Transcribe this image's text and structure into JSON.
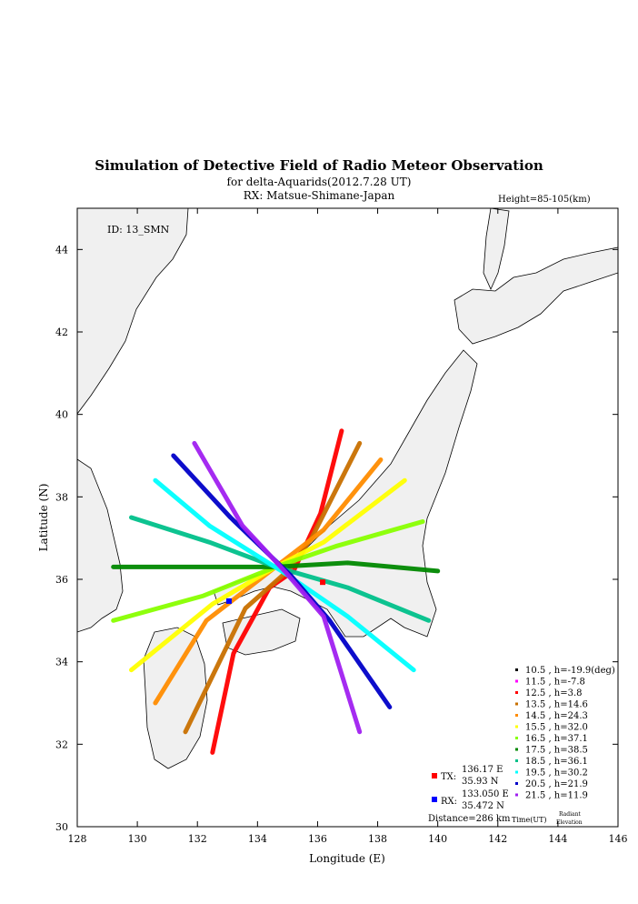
{
  "page": {
    "title": "Simulation of Detective Field of Radio Meteor Observation",
    "subtitle": "for delta-Aquarids(2012.7.28 UT)",
    "rx_line": "RX: Matsue-Shimane-Japan",
    "height_label": "Height=85-105(km)",
    "id_label": "ID: 13_SMN"
  },
  "chart_data": {
    "type": "scatter",
    "xlabel": "Longitude (E)",
    "ylabel": "Latitude (N)",
    "xlim": [
      128,
      146
    ],
    "ylim": [
      30,
      45
    ],
    "xticks": [
      128,
      130,
      132,
      134,
      136,
      138,
      140,
      142,
      144,
      146
    ],
    "yticks": [
      30,
      32,
      34,
      36,
      38,
      40,
      42,
      44
    ],
    "stations": {
      "tx": {
        "label": "TX:",
        "lon": 136.17,
        "lat": 35.93,
        "lon_text": "136.17 E",
        "lat_text": "35.93 N",
        "color": "#ff0000"
      },
      "rx": {
        "label": "RX:",
        "lon": 133.05,
        "lat": 35.472,
        "lon_text": "133.050 E",
        "lat_text": "35.472 N",
        "color": "#0000ff"
      },
      "distance_text": "Distance=286 km"
    },
    "legend_footer": {
      "time": "Time(UT)",
      "radiant": "Radiant",
      "elevation": "Elevation"
    },
    "series": [
      {
        "time": "10.5",
        "h": "h=-19.9(deg)",
        "color": "#000000",
        "points": []
      },
      {
        "time": "11.5",
        "h": "h=-7.8",
        "color": "#ff00ff",
        "points": []
      },
      {
        "time": "12.5",
        "h": "h=3.8",
        "color": "#ff0000",
        "points": [
          [
            132.5,
            31.8
          ],
          [
            133.2,
            34.2
          ],
          [
            134.4,
            35.8
          ],
          [
            135.2,
            36.2
          ],
          [
            136.1,
            37.6
          ],
          [
            136.8,
            39.6
          ]
        ]
      },
      {
        "time": "13.5",
        "h": "h=14.6",
        "color": "#c87000",
        "points": [
          [
            131.6,
            32.3
          ],
          [
            133.6,
            35.3
          ],
          [
            135.0,
            36.2
          ],
          [
            135.8,
            37.0
          ],
          [
            137.4,
            39.3
          ]
        ]
      },
      {
        "time": "14.5",
        "h": "h=24.3",
        "color": "#ff8c00",
        "points": [
          [
            130.6,
            33.0
          ],
          [
            132.3,
            35.0
          ],
          [
            134.6,
            36.3
          ],
          [
            136.2,
            37.2
          ],
          [
            138.1,
            38.9
          ]
        ]
      },
      {
        "time": "15.5",
        "h": "h=32.0",
        "color": "#ffff00",
        "points": [
          [
            129.8,
            33.8
          ],
          [
            132.5,
            35.4
          ],
          [
            134.6,
            36.3
          ],
          [
            136.2,
            36.9
          ],
          [
            138.9,
            38.4
          ]
        ]
      },
      {
        "time": "16.5",
        "h": "h=37.1",
        "color": "#88ff00",
        "points": [
          [
            129.2,
            35.0
          ],
          [
            132.2,
            35.6
          ],
          [
            134.6,
            36.3
          ],
          [
            136.6,
            36.8
          ],
          [
            139.5,
            37.4
          ]
        ]
      },
      {
        "time": "17.5",
        "h": "h=38.5",
        "color": "#008800",
        "points": [
          [
            129.2,
            36.3
          ],
          [
            132.3,
            36.3
          ],
          [
            134.6,
            36.3
          ],
          [
            137.0,
            36.4
          ],
          [
            140.0,
            36.2
          ]
        ]
      },
      {
        "time": "18.5",
        "h": "h=36.1",
        "color": "#00c08a",
        "points": [
          [
            129.8,
            37.5
          ],
          [
            132.4,
            36.9
          ],
          [
            134.6,
            36.3
          ],
          [
            137.0,
            35.8
          ],
          [
            139.7,
            35.0
          ]
        ]
      },
      {
        "time": "19.5",
        "h": "h=30.2",
        "color": "#00ffff",
        "points": [
          [
            130.6,
            38.4
          ],
          [
            132.4,
            37.3
          ],
          [
            134.8,
            36.2
          ],
          [
            137.0,
            35.1
          ],
          [
            139.2,
            33.8
          ]
        ]
      },
      {
        "time": "20.5",
        "h": "h=21.9",
        "color": "#0000c8",
        "points": [
          [
            131.2,
            39.0
          ],
          [
            133.1,
            37.5
          ],
          [
            135.1,
            36.1
          ],
          [
            136.4,
            35.0
          ],
          [
            138.4,
            32.9
          ]
        ]
      },
      {
        "time": "21.5",
        "h": "h=11.9",
        "color": "#a020f0",
        "points": [
          [
            131.9,
            39.3
          ],
          [
            133.5,
            37.3
          ],
          [
            134.9,
            36.2
          ],
          [
            136.2,
            35.1
          ],
          [
            137.4,
            32.3
          ]
        ]
      }
    ]
  }
}
